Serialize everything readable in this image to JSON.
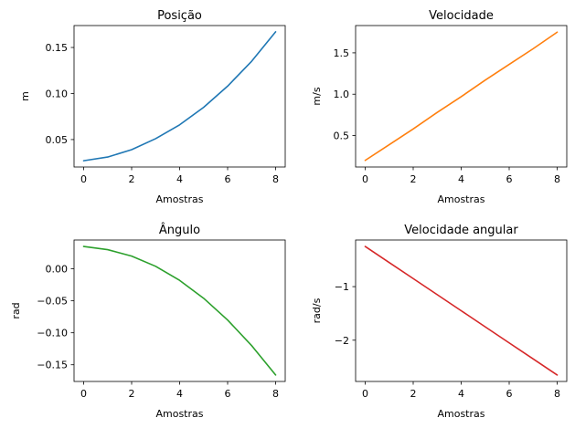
{
  "chart_data": [
    {
      "type": "line",
      "title": "Posição",
      "xlabel": "Amostras",
      "ylabel": "m",
      "x": [
        0,
        1,
        2,
        3,
        4,
        5,
        6,
        7,
        8
      ],
      "series": [
        {
          "values": [
            0.027,
            0.031,
            0.039,
            0.051,
            0.066,
            0.085,
            0.108,
            0.135,
            0.167
          ],
          "color": "#1f77b4"
        }
      ],
      "xlim": [
        -0.4,
        8.4
      ],
      "ylim": [
        0.0202,
        0.1738
      ],
      "xticks": [
        0,
        2,
        4,
        6,
        8
      ],
      "xtick_labels": [
        "0",
        "2",
        "4",
        "6",
        "8"
      ],
      "yticks": [
        0.05,
        0.1,
        0.15
      ],
      "ytick_labels": [
        "0.05",
        "0.10",
        "0.15"
      ],
      "grid": false
    },
    {
      "type": "line",
      "title": "Velocidade",
      "xlabel": "Amostras",
      "ylabel": "m/s",
      "x": [
        0,
        1,
        2,
        3,
        4,
        5,
        6,
        7,
        8
      ],
      "series": [
        {
          "values": [
            0.2,
            0.39,
            0.58,
            0.78,
            0.97,
            1.17,
            1.36,
            1.55,
            1.75
          ],
          "color": "#ff7f0e"
        }
      ],
      "xlim": [
        -0.4,
        8.4
      ],
      "ylim": [
        0.12,
        1.83
      ],
      "xticks": [
        0,
        2,
        4,
        6,
        8
      ],
      "xtick_labels": [
        "0",
        "2",
        "4",
        "6",
        "8"
      ],
      "yticks": [
        0.5,
        1.0,
        1.5
      ],
      "ytick_labels": [
        "0.5",
        "1.0",
        "1.5"
      ],
      "grid": false
    },
    {
      "type": "line",
      "title": "Ângulo",
      "xlabel": "Amostras",
      "ylabel": "rad",
      "x": [
        0,
        1,
        2,
        3,
        4,
        5,
        6,
        7,
        8
      ],
      "series": [
        {
          "values": [
            0.035,
            0.03,
            0.02,
            0.004,
            -0.018,
            -0.046,
            -0.08,
            -0.12,
            -0.166
          ],
          "color": "#2ca02c"
        }
      ],
      "xlim": [
        -0.4,
        8.4
      ],
      "ylim": [
        -0.1761,
        0.0451
      ],
      "xticks": [
        0,
        2,
        4,
        6,
        8
      ],
      "xtick_labels": [
        "0",
        "2",
        "4",
        "6",
        "8"
      ],
      "yticks": [
        0.0,
        -0.05,
        -0.1,
        -0.15
      ],
      "ytick_labels": [
        "0.00",
        "−0.05",
        "−0.10",
        "−0.15"
      ],
      "grid": false
    },
    {
      "type": "line",
      "title": "Velocidade angular",
      "xlabel": "Amostras",
      "ylabel": "rad/s",
      "x": [
        0,
        1,
        2,
        3,
        4,
        5,
        6,
        7,
        8
      ],
      "series": [
        {
          "values": [
            -0.25,
            -0.55,
            -0.85,
            -1.15,
            -1.45,
            -1.75,
            -2.05,
            -2.35,
            -2.65
          ],
          "color": "#d62728"
        }
      ],
      "xlim": [
        -0.4,
        8.4
      ],
      "ylim": [
        -2.77,
        -0.13
      ],
      "xticks": [
        0,
        2,
        4,
        6,
        8
      ],
      "xtick_labels": [
        "0",
        "2",
        "4",
        "6",
        "8"
      ],
      "yticks": [
        -1,
        -2
      ],
      "ytick_labels": [
        "−1",
        "−2"
      ],
      "grid": false
    }
  ]
}
